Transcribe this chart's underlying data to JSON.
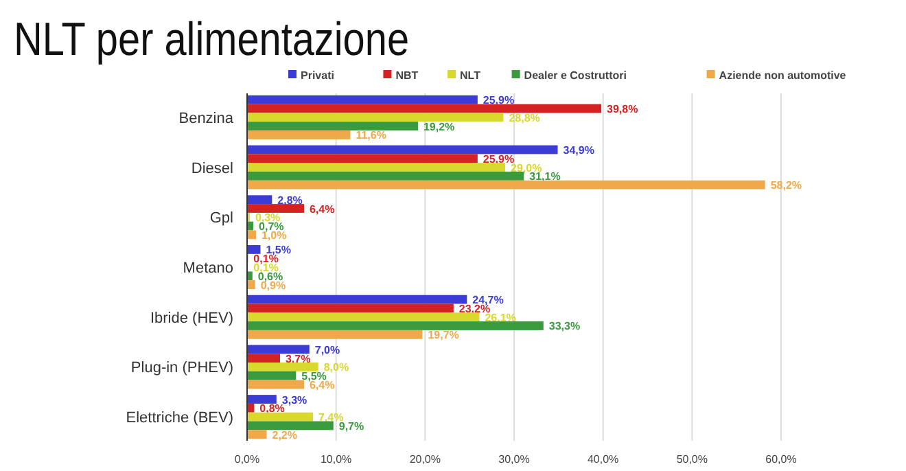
{
  "chart_data": {
    "type": "bar",
    "orientation": "horizontal",
    "title": "NLT per alimentazione",
    "categories": [
      "Benzina",
      "Diesel",
      "Gpl",
      "Metano",
      "Ibride (HEV)",
      "Plug-in (PHEV)",
      "Elettriche (BEV)"
    ],
    "series": [
      {
        "name": "Privati",
        "color": "#3b3bd6",
        "values": [
          25.9,
          34.9,
          2.8,
          1.5,
          24.7,
          7.0,
          3.3
        ],
        "value_labels": [
          "25,9%",
          "34,9%",
          "2,8%",
          "1,5%",
          "24,7%",
          "7,0%",
          "3,3%"
        ]
      },
      {
        "name": "NBT",
        "color": "#d42222",
        "values": [
          39.8,
          25.9,
          6.4,
          0.1,
          23.2,
          3.7,
          0.8
        ],
        "value_labels": [
          "39,8%",
          "25,9%",
          "6,4%",
          "0,1%",
          "23,2%",
          "3,7%",
          "0,8%"
        ]
      },
      {
        "name": "NLT",
        "color": "#d8d82e",
        "values": [
          28.8,
          29.0,
          0.3,
          0.1,
          26.1,
          8.0,
          7.4
        ],
        "value_labels": [
          "28,8%",
          "29,0%",
          "0,3%",
          "0,1%",
          "26,1%",
          "8,0%",
          "7,4%"
        ]
      },
      {
        "name": "Dealer e Costruttori",
        "color": "#3a9a3e",
        "values": [
          19.2,
          31.1,
          0.7,
          0.6,
          33.3,
          5.5,
          9.7
        ],
        "value_labels": [
          "19,2%",
          "31,1%",
          "0,7%",
          "0,6%",
          "33,3%",
          "5,5%",
          "9,7%"
        ]
      },
      {
        "name": "Aziende non automotive",
        "color": "#efa94a",
        "values": [
          11.6,
          58.2,
          1.0,
          0.9,
          19.7,
          6.4,
          2.2
        ],
        "value_labels": [
          "11,6%",
          "58,2%",
          "1,0%",
          "0,9%",
          "19,7%",
          "6,4%",
          "2,2%"
        ]
      }
    ],
    "xlim": [
      0,
      60
    ],
    "xticks": [
      {
        "value": 0,
        "label": "0,0%"
      },
      {
        "value": 10,
        "label": "10,0%"
      },
      {
        "value": 20,
        "label": "20,0%"
      },
      {
        "value": 30,
        "label": "30,0%"
      },
      {
        "value": 40,
        "label": "40,0%"
      },
      {
        "value": 50,
        "label": "50,0%"
      },
      {
        "value": 60,
        "label": "60,0%"
      }
    ],
    "grid": "x",
    "legend": "top"
  }
}
